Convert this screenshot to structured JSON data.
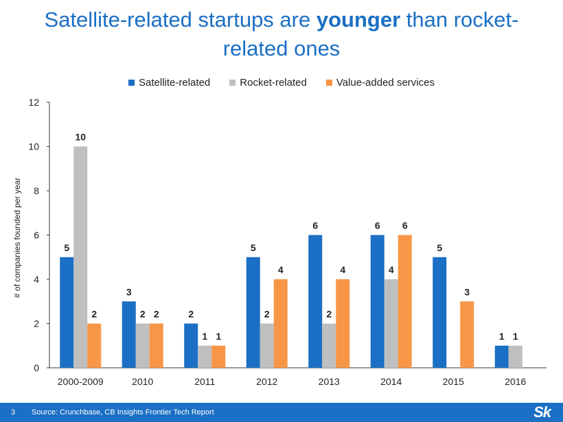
{
  "title": {
    "prefix": "Satellite-related startups are ",
    "emphasis": "younger",
    "suffix": " than rocket-related ones"
  },
  "footer": {
    "page_number": "3",
    "source": "Source: Crunchbase, CB Insights Frontier Tech Report",
    "logo_text": "Sk"
  },
  "chart_data": {
    "type": "bar",
    "title": "Satellite-related startups are younger than rocket-related ones",
    "xlabel": "",
    "ylabel": "# of companies founded per year",
    "ylim": [
      0,
      12
    ],
    "yticks": [
      0,
      2,
      4,
      6,
      8,
      10,
      12
    ],
    "grid": false,
    "legend_position": "top-center",
    "categories": [
      "2000-2009",
      "2010",
      "2011",
      "2012",
      "2013",
      "2014",
      "2015",
      "2016"
    ],
    "series": [
      {
        "name": "Satellite-related",
        "color": "#1b6fc4",
        "values": [
          5,
          3,
          2,
          5,
          6,
          6,
          5,
          1
        ]
      },
      {
        "name": "Rocket-related",
        "color": "#bfbfbf",
        "values": [
          10,
          2,
          1,
          2,
          2,
          4,
          0,
          1
        ]
      },
      {
        "name": "Value-added services",
        "color": "#f79646",
        "values": [
          2,
          2,
          1,
          4,
          4,
          6,
          3,
          0
        ]
      }
    ]
  }
}
